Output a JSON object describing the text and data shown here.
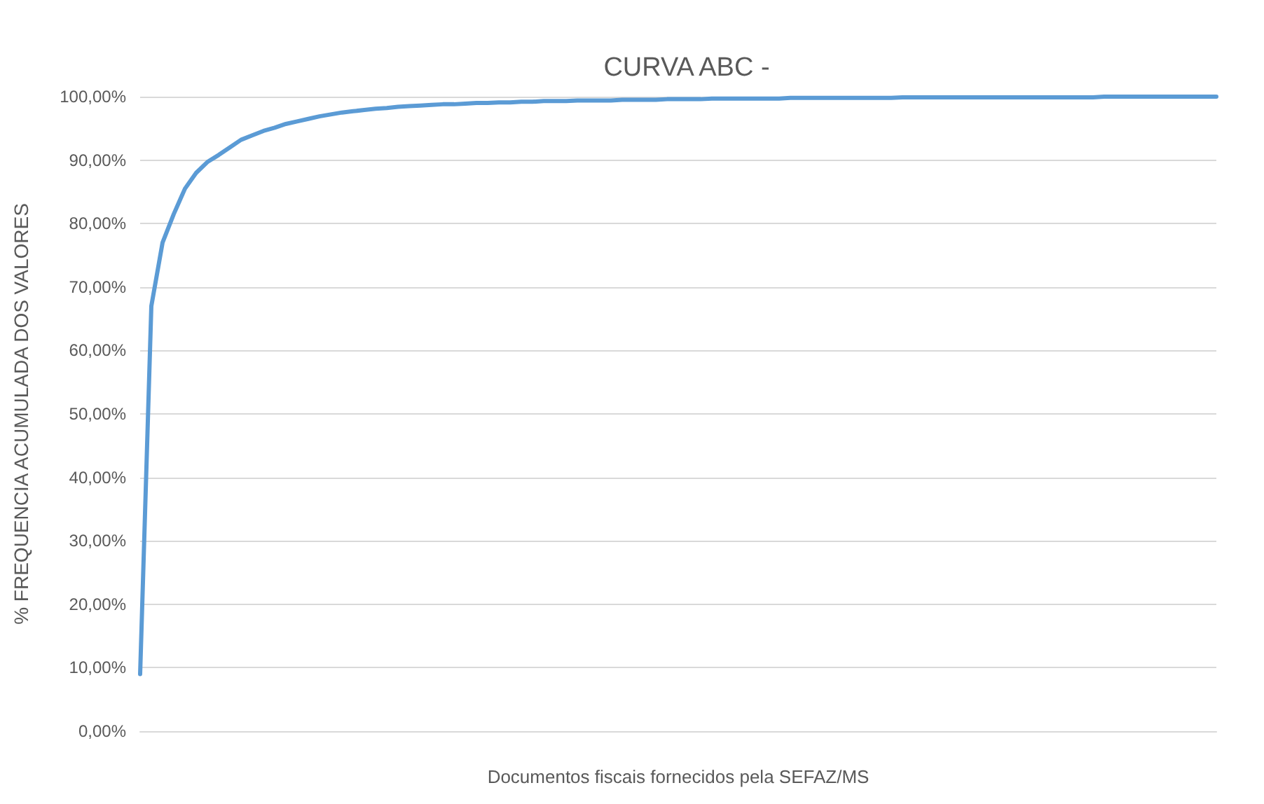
{
  "chart_data": {
    "type": "line",
    "title": "CURVA ABC -",
    "xlabel": "Documentos fiscais fornecidos pela SEFAZ/MS",
    "ylabel": "% FREQUENCIA ACUMULADA DOS VALORES",
    "categories": [
      null,
      null,
      null,
      null,
      null,
      null,
      null,
      null,
      null,
      null,
      null,
      null,
      null,
      null,
      null,
      null,
      null,
      null,
      null,
      null,
      null,
      null,
      null,
      null,
      null,
      null,
      null,
      null,
      null,
      null,
      null,
      null,
      null,
      null,
      null,
      null,
      null,
      null,
      null,
      null,
      null,
      null,
      null,
      null,
      null,
      null,
      null,
      null,
      null,
      null,
      null,
      null,
      null,
      null,
      null,
      null,
      null,
      null,
      null,
      null,
      null,
      null,
      null,
      null,
      null,
      null,
      null,
      null,
      null,
      null,
      null,
      null,
      null,
      null,
      null,
      null,
      null,
      null,
      null,
      null,
      null,
      null,
      null,
      null,
      null,
      null,
      null,
      null,
      null,
      null,
      null,
      null,
      null,
      null,
      null,
      null,
      null
    ],
    "series": [
      {
        "color": "#5b9bd5",
        "values": [
          9,
          67,
          77,
          81.5,
          85.5,
          88,
          89.7,
          90.8,
          92,
          93.2,
          93.9,
          94.6,
          95.1,
          95.7,
          96.1,
          96.5,
          96.9,
          97.2,
          97.5,
          97.7,
          97.9,
          98.1,
          98.2,
          98.4,
          98.5,
          98.6,
          98.7,
          98.8,
          98.8,
          98.9,
          99,
          99,
          99.1,
          99.1,
          99.2,
          99.2,
          99.3,
          99.3,
          99.3,
          99.4,
          99.4,
          99.4,
          99.4,
          99.5,
          99.5,
          99.5,
          99.5,
          99.6,
          99.6,
          99.6,
          99.6,
          99.7,
          99.7,
          99.7,
          99.7,
          99.7,
          99.7,
          99.7,
          99.8,
          99.8,
          99.8,
          99.8,
          99.8,
          99.8,
          99.8,
          99.8,
          99.8,
          99.8,
          99.9,
          99.9,
          99.9,
          99.9,
          99.9,
          99.9,
          99.9,
          99.9,
          99.9,
          99.9,
          99.9,
          99.9,
          99.9,
          99.9,
          99.9,
          99.9,
          99.9,
          99.9,
          100,
          100,
          100,
          100,
          100,
          100,
          100,
          100,
          100,
          100,
          100
        ]
      }
    ],
    "ylim": [
      0,
      100
    ],
    "yticks": [
      {
        "value": 0,
        "label": "0,00%"
      },
      {
        "value": 10,
        "label": "10,00%"
      },
      {
        "value": 20,
        "label": "20,00%"
      },
      {
        "value": 30,
        "label": "30,00%"
      },
      {
        "value": 40,
        "label": "40,00%"
      },
      {
        "value": 50,
        "label": "50,00%"
      },
      {
        "value": 60,
        "label": "60,00%"
      },
      {
        "value": 70,
        "label": "70,00%"
      },
      {
        "value": 80,
        "label": "80,00%"
      },
      {
        "value": 90,
        "label": "90,00%"
      },
      {
        "value": 100,
        "label": "100,00%"
      }
    ],
    "grid": "y",
    "line_style": "solid",
    "tick_labels": "y"
  }
}
